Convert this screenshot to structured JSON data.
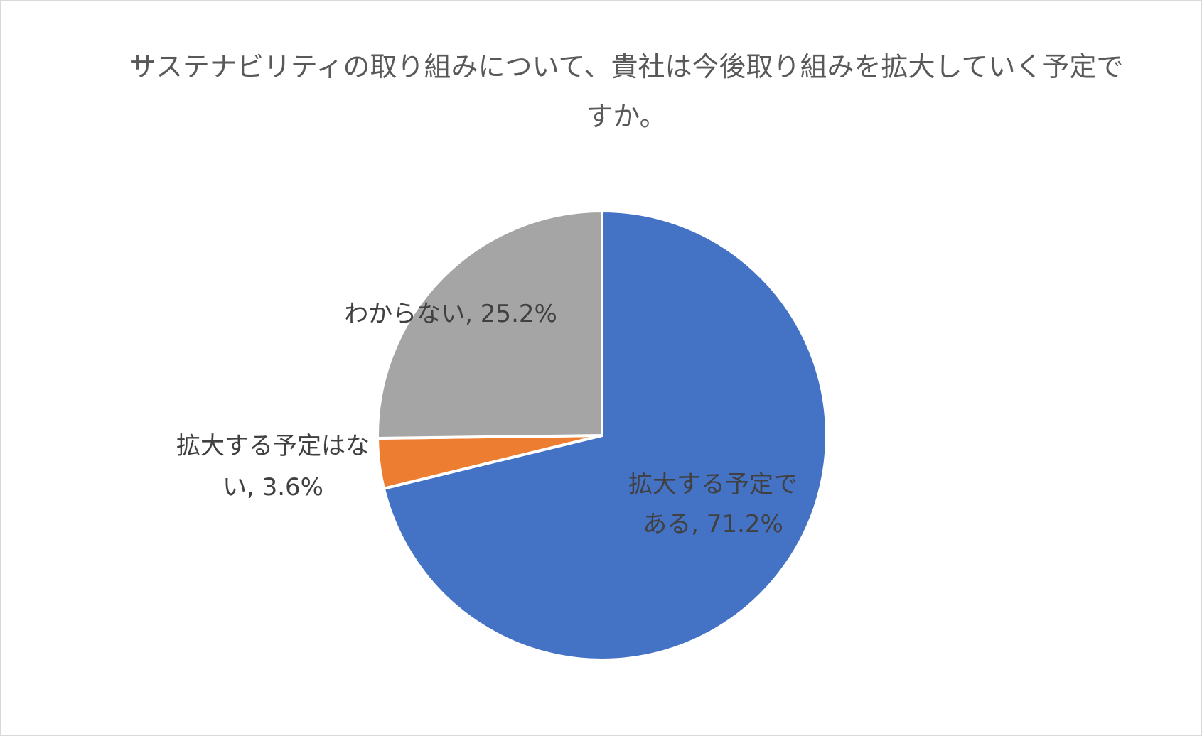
{
  "colors": {
    "blue": "#4472c4",
    "orange": "#ed7d31",
    "gray": "#a5a5a5",
    "separator": "#ffffff",
    "label_text": "#404040",
    "title_text": "#595959"
  },
  "chart_data": {
    "type": "pie",
    "title": "サステナビリティの取り組みについて、貴社は今後取り組みを拡大していく予定ですか。",
    "unit": "%",
    "slices": [
      {
        "label": "拡大する予定である",
        "value": 71.2,
        "color": "#4472c4",
        "label_text_lines": [
          "拡大する予定で",
          "ある, 71.2%"
        ]
      },
      {
        "label": "拡大する予定はない",
        "value": 3.6,
        "color": "#ed7d31",
        "label_text_lines": [
          "拡大する予定はな",
          "い, 3.6%"
        ]
      },
      {
        "label": "わからない",
        "value": 25.2,
        "color": "#a5a5a5",
        "label_text_lines": [
          "わからない, 25.2%"
        ]
      }
    ],
    "legend": "none",
    "data_labels": "category name and percentage"
  }
}
